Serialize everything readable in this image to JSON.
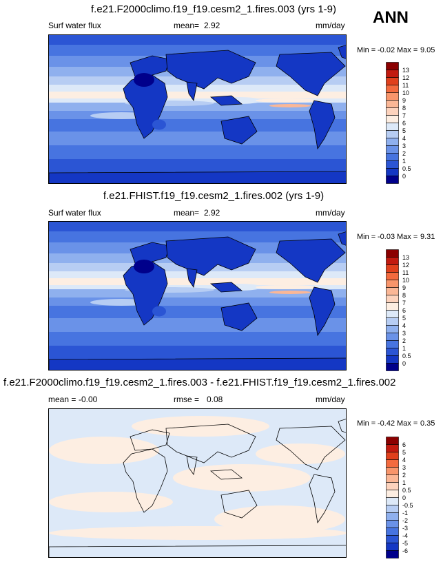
{
  "season": "ANN",
  "chart_data": [
    {
      "type": "heatmap",
      "title": "f.e21.F2000climo.f19_f19.cesm2_1.fires.003 (yrs 1-9)",
      "variable": "Surf water flux",
      "mean_label": "mean=",
      "mean": "2.92",
      "units": "mm/day",
      "min_label": "Min =",
      "min": "-0.02",
      "max_label": "Max =",
      "max": "9.05",
      "colorbar_labels": [
        "13",
        "12",
        "11",
        "10",
        "9",
        "8",
        "7",
        "6",
        "5",
        "4",
        "3",
        "2",
        "1",
        "0.5",
        "0"
      ],
      "colors": [
        "#8b0000",
        "#c21a0f",
        "#e0401c",
        "#f36a3e",
        "#f8956b",
        "#fbb796",
        "#fdd3bd",
        "#fdeee2",
        "#dde9f8",
        "#b7cdf3",
        "#8fb0ee",
        "#6a92e8",
        "#4774e0",
        "#2b55d4",
        "#1437c4",
        "#00008b"
      ]
    },
    {
      "type": "heatmap",
      "title": "f.e21.FHIST.f19_f19.cesm2_1.fires.002 (yrs 1-9)",
      "variable": "Surf water flux",
      "mean_label": "mean=",
      "mean": "2.92",
      "units": "mm/day",
      "min_label": "Min =",
      "min": "-0.03",
      "max_label": "Max =",
      "max": "9.31",
      "colorbar_labels": [
        "13",
        "12",
        "11",
        "10",
        "9",
        "8",
        "7",
        "6",
        "5",
        "4",
        "3",
        "2",
        "1",
        "0.5",
        "0"
      ],
      "colors": [
        "#8b0000",
        "#c21a0f",
        "#e0401c",
        "#f36a3e",
        "#f8956b",
        "#fbb796",
        "#fdd3bd",
        "#fdeee2",
        "#dde9f8",
        "#b7cdf3",
        "#8fb0ee",
        "#6a92e8",
        "#4774e0",
        "#2b55d4",
        "#1437c4",
        "#00008b"
      ]
    },
    {
      "type": "heatmap",
      "title": "f.e21.F2000climo.f19_f19.cesm2_1.fires.003 - f.e21.FHIST.f19_f19.cesm2_1.fires.002",
      "mean_label": "mean =",
      "mean": "-0.00",
      "rmse_label": "rmse =",
      "rmse": "0.08",
      "units": "mm/day",
      "min_label": "Min =",
      "min": "-0.42",
      "max_label": "Max =",
      "max": "0.35",
      "colorbar_labels": [
        "6",
        "5",
        "4",
        "3",
        "2",
        "1",
        "0.5",
        "0",
        "-0.5",
        "-1",
        "-2",
        "-3",
        "-4",
        "-5",
        "-6"
      ],
      "colors": [
        "#8b0000",
        "#c21a0f",
        "#e0401c",
        "#f36a3e",
        "#f8956b",
        "#fbb796",
        "#fdd3bd",
        "#fdeee2",
        "#dde9f8",
        "#b7cdf3",
        "#8fb0ee",
        "#6a92e8",
        "#4774e0",
        "#2b55d4",
        "#1437c4",
        "#00008b"
      ]
    }
  ]
}
